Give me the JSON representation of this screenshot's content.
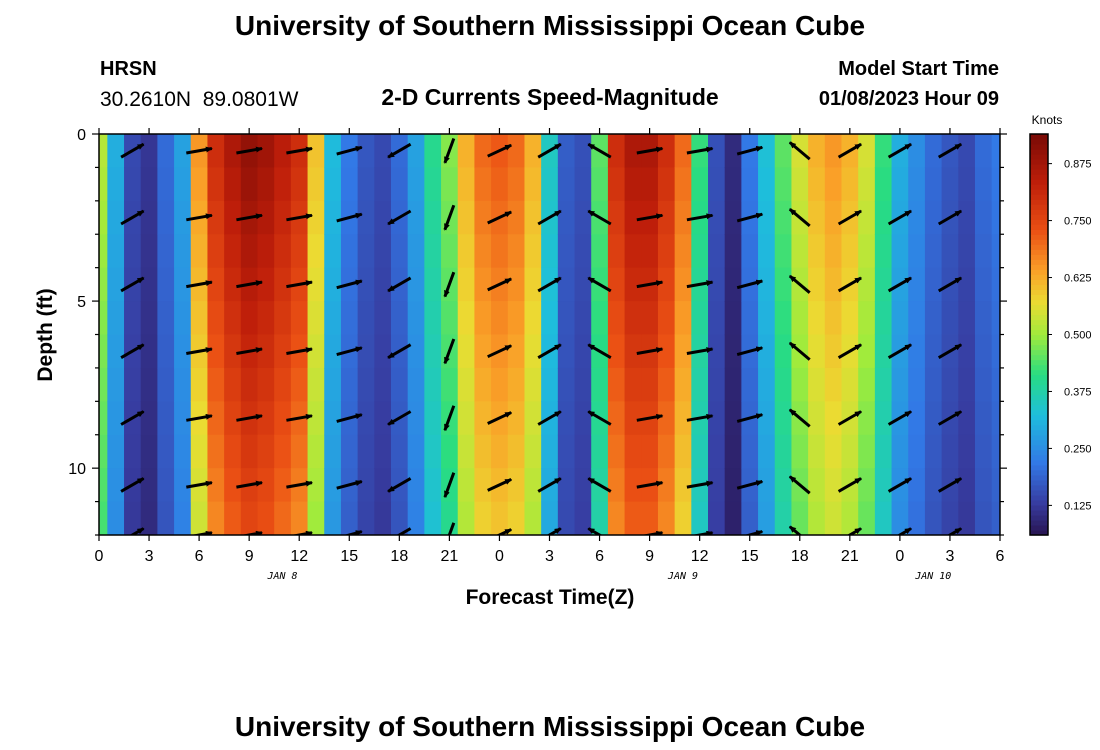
{
  "title": "University of Southern Mississippi Ocean Cube",
  "footer_title": "University of Southern Mississippi Ocean Cube",
  "station": {
    "code": "HRSN",
    "coords": "30.2610N  89.0801W"
  },
  "plot_title": "2-D Currents Speed-Magnitude",
  "model_start": {
    "label": "Model Start Time",
    "value": "01/08/2023 Hour 09"
  },
  "chart_data": {
    "type": "heatmap",
    "title": "2-D Currents Speed-Magnitude",
    "xlabel": "Forecast Time(Z)",
    "ylabel": "Depth (ft)",
    "x_hours": [
      0,
      3,
      6,
      9,
      12,
      15,
      18,
      21,
      24,
      27,
      30,
      33,
      36,
      39,
      42,
      45,
      48,
      51,
      54
    ],
    "x_tick_labels": [
      "0",
      "3",
      "6",
      "9",
      "12",
      "15",
      "18",
      "21",
      "0",
      "3",
      "6",
      "9",
      "12",
      "15",
      "18",
      "21",
      "0",
      "3",
      "6"
    ],
    "date_labels": [
      {
        "hour": 11,
        "text": "JAN 8"
      },
      {
        "hour": 35,
        "text": "JAN 9"
      },
      {
        "hour": 50,
        "text": "JAN 10"
      }
    ],
    "xlim": [
      0,
      54
    ],
    "ylim": [
      0,
      12
    ],
    "y_axis_reversed": true,
    "y_ticks": [
      0,
      5,
      10
    ],
    "colorbar": {
      "title": "Knots",
      "ticks": [
        0.125,
        0.25,
        0.375,
        0.5,
        0.625,
        0.75,
        0.875
      ],
      "tick_labels": [
        "0.125",
        "0.250",
        "0.375",
        "0.500",
        "0.625",
        "0.750",
        "0.875"
      ],
      "range": [
        0.06,
        0.94
      ]
    },
    "speed_profile_hours": [
      0,
      1,
      2,
      3,
      4,
      5,
      6,
      7,
      8,
      9,
      10,
      11,
      12,
      13,
      14,
      15,
      16,
      17,
      18,
      19,
      20,
      21,
      22,
      23,
      24,
      25,
      26,
      27,
      28,
      29,
      30,
      31,
      32,
      33,
      34,
      35,
      36,
      37,
      38,
      39,
      40,
      41,
      42,
      43,
      44,
      45,
      46,
      47,
      48,
      49,
      50,
      51,
      52,
      53,
      54
    ],
    "speed_profile_knots": [
      0.52,
      0.3,
      0.15,
      0.12,
      0.2,
      0.28,
      0.65,
      0.8,
      0.86,
      0.9,
      0.88,
      0.84,
      0.8,
      0.6,
      0.32,
      0.22,
      0.17,
      0.15,
      0.2,
      0.28,
      0.4,
      0.48,
      0.62,
      0.7,
      0.72,
      0.7,
      0.62,
      0.35,
      0.18,
      0.16,
      0.45,
      0.8,
      0.86,
      0.86,
      0.8,
      0.7,
      0.42,
      0.16,
      0.1,
      0.22,
      0.33,
      0.45,
      0.55,
      0.62,
      0.65,
      0.62,
      0.55,
      0.42,
      0.3,
      0.25,
      0.2,
      0.17,
      0.15,
      0.2,
      0.22
    ],
    "vectors": {
      "hours": [
        2,
        6,
        9,
        12,
        15,
        18,
        21,
        24,
        27,
        30,
        33,
        36,
        39,
        42,
        45,
        48,
        51
      ],
      "depths_ft": [
        0.5,
        2.5,
        4.5,
        6.5,
        8.5,
        10.5,
        12
      ],
      "note": "arrow direction in degrees (0=east, 90=north) per time column"
    },
    "vector_directions_deg": [
      30,
      10,
      10,
      10,
      15,
      210,
      250,
      25,
      30,
      150,
      10,
      10,
      15,
      140,
      30,
      30,
      30
    ]
  }
}
